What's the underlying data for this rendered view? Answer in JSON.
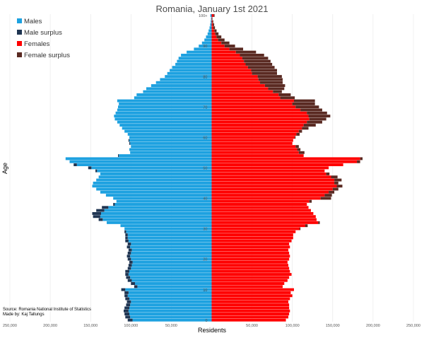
{
  "chart_data": {
    "type": "bar",
    "orientation": "horizontal-population-pyramid",
    "title": "Romania, January 1st 2021",
    "xlabel": "Residents",
    "ylabel": "Age",
    "xlim": [
      -250000,
      250000
    ],
    "ylim": [
      0,
      100
    ],
    "x_ticks": [
      -250000,
      -200000,
      -150000,
      -100000,
      -50000,
      50000,
      100000,
      150000,
      200000,
      250000
    ],
    "x_tick_labels": [
      "250,000",
      "200,000",
      "150,000",
      "100,000",
      "50,000",
      "50,000",
      "100,000",
      "150,000",
      "200,000",
      "250,000"
    ],
    "y_ticks": [
      0,
      10,
      20,
      30,
      40,
      50,
      60,
      70,
      80,
      90,
      100
    ],
    "y_tick_labels": [
      "0",
      "10",
      "20",
      "30",
      "40",
      "50",
      "60",
      "70",
      "80",
      "90",
      "100+"
    ],
    "grid": true,
    "legend_position": "top-left",
    "legend": [
      {
        "label": "Males",
        "color": "#1da1e0"
      },
      {
        "label": "Male surplus",
        "color": "#1f3552"
      },
      {
        "label": "Females",
        "color": "#ff0000"
      },
      {
        "label": "Female surplus",
        "color": "#5a2a22"
      }
    ],
    "ages": [
      0,
      1,
      2,
      3,
      4,
      5,
      6,
      7,
      8,
      9,
      10,
      11,
      12,
      13,
      14,
      15,
      16,
      17,
      18,
      19,
      20,
      21,
      22,
      23,
      24,
      25,
      26,
      27,
      28,
      29,
      30,
      31,
      32,
      33,
      34,
      35,
      36,
      37,
      38,
      39,
      40,
      41,
      42,
      43,
      44,
      45,
      46,
      47,
      48,
      49,
      50,
      51,
      52,
      53,
      54,
      55,
      56,
      57,
      58,
      59,
      60,
      61,
      62,
      63,
      64,
      65,
      66,
      67,
      68,
      69,
      70,
      71,
      72,
      73,
      74,
      75,
      76,
      77,
      78,
      79,
      80,
      81,
      82,
      83,
      84,
      85,
      86,
      87,
      88,
      89,
      90,
      91,
      92,
      93,
      94,
      95,
      96,
      97,
      98,
      99,
      100
    ],
    "series": [
      {
        "name": "Males",
        "values": [
          98000,
          101000,
          102000,
          103000,
          102000,
          101000,
          100000,
          102000,
          104000,
          103000,
          107000,
          92000,
          95000,
          99000,
          101000,
          103000,
          102000,
          100000,
          99000,
          98000,
          100000,
          101000,
          100000,
          99000,
          101000,
          100000,
          103000,
          104000,
          104000,
          106000,
          108000,
          113000,
          130000,
          135000,
          138000,
          137000,
          133000,
          128000,
          120000,
          118000,
          122000,
          131000,
          138000,
          143000,
          148000,
          147000,
          143000,
          140000,
          138000,
          142000,
          149000,
          167000,
          176000,
          181000,
          115000,
          101000,
          102000,
          100000,
          101000,
          102000,
          102000,
          104000,
          108000,
          111000,
          114000,
          117000,
          120000,
          121000,
          119000,
          117000,
          116000,
          115000,
          117000,
          96000,
          93000,
          85000,
          81000,
          75000,
          69000,
          64000,
          58000,
          55000,
          52000,
          49000,
          45000,
          43000,
          41000,
          38000,
          31000,
          22000,
          16000,
          12000,
          9000,
          7000,
          5000,
          3800,
          2600,
          1800,
          1200,
          800,
          1600
        ]
      },
      {
        "name": "Females",
        "values": [
          92000,
          95000,
          96000,
          97000,
          96000,
          96000,
          95000,
          97000,
          100000,
          98000,
          102000,
          88000,
          90000,
          94000,
          96000,
          99000,
          97000,
          96000,
          95000,
          94000,
          96000,
          97000,
          96000,
          95000,
          97000,
          96000,
          99000,
          101000,
          101000,
          104000,
          109000,
          116000,
          132000,
          130000,
          129000,
          126000,
          123000,
          120000,
          118000,
          121000,
          135000,
          140000,
          145000,
          150000,
          155000,
          152000,
          152000,
          148000,
          142000,
          140000,
          145000,
          163000,
          180000,
          184000,
          114000,
          108000,
          106000,
          104000,
          100000,
          101000,
          103000,
          105000,
          108000,
          112000,
          114000,
          118000,
          121000,
          120000,
          118000,
          110000,
          104000,
          100000,
          102000,
          85000,
          83000,
          76000,
          70000,
          66000,
          60000,
          58000,
          57000,
          50000,
          49000,
          45000,
          42000,
          40000,
          38000,
          35000,
          30000,
          22000,
          16000,
          12000,
          8000,
          6000,
          4500,
          3300,
          2100,
          1600,
          1000,
          500,
          2500
        ]
      },
      {
        "name": "Male surplus",
        "values": [
          6000,
          6000,
          6000,
          6000,
          6000,
          5000,
          5000,
          5000,
          4000,
          5000,
          5000,
          4000,
          5000,
          5000,
          5000,
          4000,
          5000,
          4000,
          4000,
          4000,
          4000,
          4000,
          4000,
          4000,
          4000,
          4000,
          4000,
          3000,
          3000,
          2000,
          0,
          0,
          0,
          5000,
          9000,
          11000,
          10000,
          8000,
          2000,
          0,
          0,
          0,
          0,
          0,
          0,
          0,
          0,
          0,
          0,
          2000,
          4000,
          4000,
          0,
          0,
          1000,
          0,
          0,
          0,
          1000,
          1000,
          0,
          0,
          0,
          0,
          0,
          0,
          0,
          0,
          0,
          0,
          0,
          0,
          0,
          0,
          0,
          0,
          0,
          0,
          0,
          0,
          0,
          0,
          0,
          0,
          0,
          0,
          0,
          0,
          0,
          0,
          0,
          0,
          0,
          0,
          0,
          0,
          0,
          0,
          0,
          0,
          0
        ]
      },
      {
        "name": "Female surplus",
        "values": [
          0,
          0,
          0,
          0,
          0,
          0,
          0,
          0,
          0,
          0,
          0,
          0,
          0,
          0,
          0,
          0,
          0,
          0,
          0,
          0,
          0,
          0,
          0,
          0,
          0,
          0,
          0,
          0,
          0,
          0,
          1000,
          3000,
          2000,
          0,
          0,
          0,
          0,
          0,
          0,
          3000,
          13000,
          9000,
          7000,
          7000,
          7000,
          5000,
          9000,
          8000,
          4000,
          0,
          0,
          0,
          4000,
          3000,
          0,
          7000,
          4000,
          4000,
          0,
          0,
          1000,
          1000,
          0,
          1000,
          0,
          1000,
          1000,
          0,
          0,
          0,
          0,
          0,
          0,
          0,
          0,
          0,
          0,
          0,
          0,
          0,
          0,
          0,
          0,
          0,
          0,
          0,
          0,
          0,
          0,
          0,
          0,
          0,
          0,
          0,
          0,
          0,
          0,
          0,
          0,
          0,
          0
        ]
      },
      {
        "name": "Female surplus",
        "values": [
          0,
          0,
          0,
          0,
          0,
          0,
          0,
          0,
          0,
          0,
          0,
          0,
          0,
          0,
          0,
          0,
          0,
          0,
          0,
          0,
          0,
          0,
          0,
          0,
          0,
          0,
          0,
          0,
          0,
          0,
          0,
          0,
          0,
          0,
          0,
          0,
          0,
          0,
          0,
          0,
          0,
          0,
          0,
          0,
          0,
          0,
          0,
          0,
          0,
          0,
          0,
          0,
          0,
          0,
          0,
          0,
          0,
          0,
          0,
          0,
          0,
          3000,
          4000,
          7000,
          15000,
          18000,
          20000,
          27000,
          25000,
          27000,
          29000,
          28000,
          26000,
          18000,
          15000,
          11000,
          20000,
          25000,
          28000,
          30000,
          30000,
          31000,
          32000,
          33000,
          33000,
          33000,
          32000,
          30000,
          25000,
          17000,
          13000,
          10000,
          8000,
          6000,
          4000,
          2800,
          2000,
          1500,
          1000,
          500,
          1100
        ]
      }
    ],
    "notes": [
      "Source: Romania National Institute of Statistics",
      "Made by: Kaj Tallungs"
    ]
  }
}
